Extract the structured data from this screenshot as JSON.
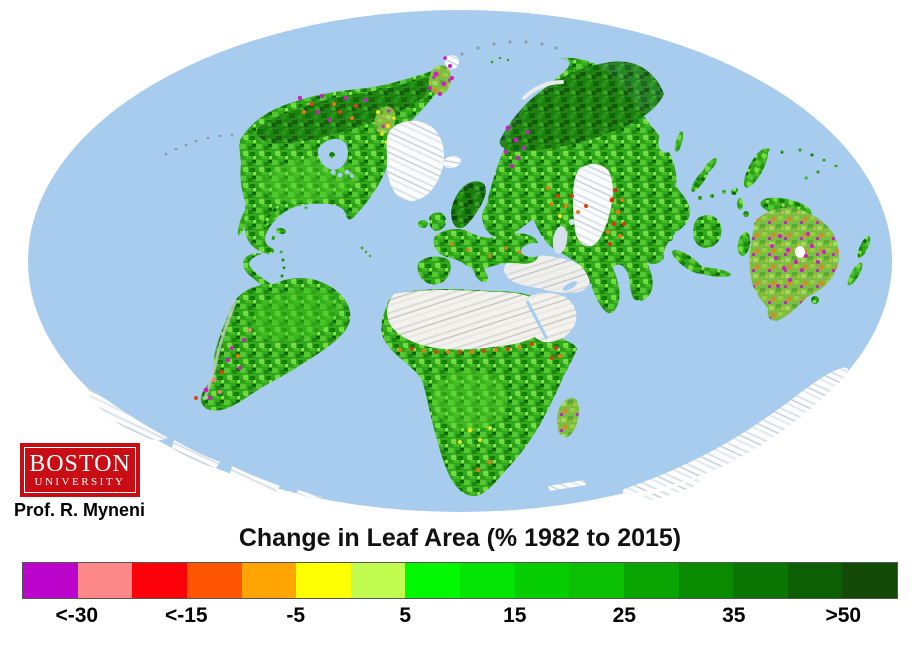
{
  "logo": {
    "line1": "BOSTON",
    "line2": "UNIVERSITY",
    "background": "#C90D14",
    "text_color": "#FFFFFF"
  },
  "credit": {
    "text": "Prof. R. Myneni"
  },
  "legend": {
    "title": "Change in Leaf Area (% 1982 to 2015)",
    "tick_labels": [
      "<-30",
      "<-15",
      "-5",
      "5",
      "15",
      "25",
      "35",
      ">50"
    ],
    "segment_colors": [
      "#BB05CC",
      "#FC8888",
      "#FB020A",
      "#FD5502",
      "#FFA503",
      "#FEFE03",
      "#C3FC51",
      "#02F802",
      "#04E404",
      "#07CE03",
      "#0BBF02",
      "#0AA402",
      "#0A8A01",
      "#0B7502",
      "#0D5F04",
      "#134A08"
    ]
  },
  "map": {
    "colors": {
      "ocean": "#A8CCEE",
      "land": "#33A81C",
      "boreal": "#1B7D0F",
      "dry": "#7CBE42",
      "desert": "#F3F2EE",
      "ice": "#FBFCFD",
      "browning": "#CC1FC4"
    }
  },
  "chart_data": {
    "type": "heatmap",
    "title": "Change in Leaf Area (% 1982 to 2015)",
    "legend_labels": [
      "<-30",
      "<-15",
      "-5",
      "5",
      "15",
      "25",
      "35",
      ">50"
    ],
    "legend_colors": [
      "#BB05CC",
      "#FC8888",
      "#FB020A",
      "#FD5502",
      "#FFA503",
      "#FEFE03",
      "#C3FC51",
      "#02F802",
      "#04E404",
      "#07CE03",
      "#0BBF02",
      "#0AA402",
      "#0A8A01",
      "#0B7502",
      "#0D5F04",
      "#134A08"
    ],
    "legend_position": "bottom"
  }
}
